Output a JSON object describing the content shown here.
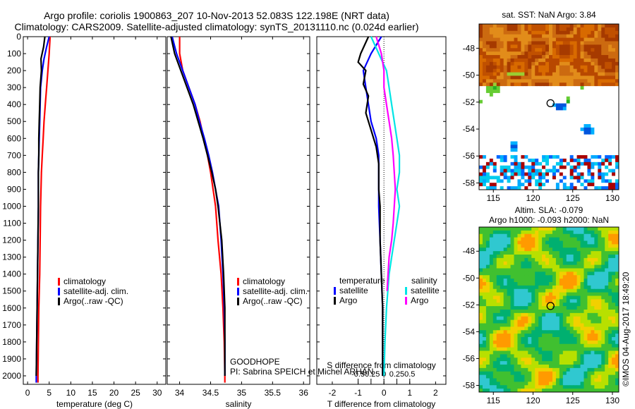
{
  "title": {
    "line1": "Argo profile: coriolis 1900863_207 10-Nov-2013 52.083S 122.198E (NRT data)",
    "line2": "Climatology: CARS2009. Satellite-adjusted climatology: synTS_20131110.nc (0.024d earlier)"
  },
  "colors": {
    "climatology": "#ff0000",
    "satellite": "#0000ff",
    "argo": "#000000",
    "salinity_satellite": "#00e5e5",
    "salinity_argo": "#ff00ff"
  },
  "chart_data": [
    {
      "type": "line",
      "id": "temperature",
      "xlabel": "temperature (deg C)",
      "xlim": [
        -1,
        32
      ],
      "xticks": [
        0,
        5,
        10,
        15,
        20,
        25,
        30
      ],
      "ylim": [
        0,
        2050
      ],
      "yticks": [
        0,
        100,
        200,
        300,
        400,
        500,
        600,
        700,
        800,
        900,
        1000,
        1100,
        1200,
        1300,
        1400,
        1500,
        1600,
        1700,
        1800,
        1900,
        2000
      ],
      "legend": [
        "climatology",
        "satellite-adj. clim.",
        "Argo(..raw -QC)"
      ],
      "series": [
        {
          "name": "climatology",
          "color": "#ff0000",
          "points": [
            [
              5.2,
              0
            ],
            [
              5.0,
              100
            ],
            [
              4.7,
              200
            ],
            [
              4.4,
              300
            ],
            [
              4.1,
              400
            ],
            [
              3.8,
              500
            ],
            [
              3.6,
              600
            ],
            [
              3.4,
              700
            ],
            [
              3.2,
              800
            ],
            [
              3.1,
              900
            ],
            [
              3.0,
              1000
            ],
            [
              2.9,
              1200
            ],
            [
              2.8,
              1400
            ],
            [
              2.6,
              1600
            ],
            [
              2.5,
              1800
            ],
            [
              2.4,
              2000
            ],
            [
              2.4,
              2040
            ]
          ]
        },
        {
          "name": "satellite-adj. clim.",
          "color": "#0000ff",
          "points": [
            [
              5.0,
              0
            ],
            [
              4.4,
              60
            ],
            [
              3.8,
              130
            ],
            [
              3.4,
              200
            ],
            [
              3.0,
              300
            ],
            [
              2.9,
              400
            ],
            [
              2.8,
              500
            ],
            [
              2.7,
              600
            ],
            [
              2.6,
              700
            ],
            [
              2.5,
              800
            ],
            [
              2.5,
              900
            ],
            [
              2.5,
              1000
            ],
            [
              2.4,
              1200
            ],
            [
              2.3,
              1400
            ],
            [
              2.2,
              1600
            ],
            [
              2.1,
              1800
            ],
            [
              2.0,
              2000
            ],
            [
              2.0,
              2040
            ]
          ]
        },
        {
          "name": "Argo(..raw -QC)",
          "color": "#000000",
          "points": [
            [
              4.0,
              0
            ],
            [
              3.7,
              60
            ],
            [
              3.1,
              130
            ],
            [
              3.2,
              200
            ],
            [
              2.9,
              300
            ],
            [
              2.8,
              400
            ],
            [
              2.7,
              500
            ],
            [
              2.6,
              600
            ],
            [
              2.6,
              700
            ],
            [
              2.5,
              800
            ],
            [
              2.5,
              900
            ],
            [
              2.5,
              1000
            ],
            [
              2.4,
              1200
            ],
            [
              2.3,
              1400
            ],
            [
              2.2,
              1600
            ],
            [
              2.1,
              1800
            ],
            [
              2.0,
              2000
            ]
          ]
        }
      ]
    },
    {
      "type": "line",
      "id": "salinity",
      "xlabel": "salinity",
      "xlim": [
        33.8,
        36.1
      ],
      "xticks": [
        34,
        34.5,
        35,
        35.5,
        36
      ],
      "ylim": [
        0,
        2050
      ],
      "legend": [
        "climatology",
        "satellite-adj. clim.",
        "Argo(..raw -QC)"
      ],
      "annotation": [
        "GOODHOPE",
        "PI: Sabrina SPEICH et Michel ARHAN"
      ],
      "series": [
        {
          "name": "climatology",
          "color": "#ff0000",
          "points": [
            [
              34.0,
              0
            ],
            [
              34.0,
              100
            ],
            [
              34.05,
              200
            ],
            [
              34.15,
              300
            ],
            [
              34.25,
              400
            ],
            [
              34.33,
              500
            ],
            [
              34.39,
              600
            ],
            [
              34.45,
              700
            ],
            [
              34.5,
              800
            ],
            [
              34.54,
              900
            ],
            [
              34.58,
              1000
            ],
            [
              34.62,
              1200
            ],
            [
              34.67,
              1400
            ],
            [
              34.7,
              1600
            ],
            [
              34.72,
              1800
            ],
            [
              34.73,
              2000
            ],
            [
              34.73,
              2040
            ]
          ]
        },
        {
          "name": "satellite-adj. clim.",
          "color": "#0000ff",
          "points": [
            [
              33.88,
              0
            ],
            [
              33.95,
              100
            ],
            [
              34.05,
              200
            ],
            [
              34.15,
              300
            ],
            [
              34.25,
              400
            ],
            [
              34.32,
              500
            ],
            [
              34.4,
              600
            ],
            [
              34.47,
              700
            ],
            [
              34.53,
              800
            ],
            [
              34.58,
              900
            ],
            [
              34.63,
              1000
            ],
            [
              34.67,
              1200
            ],
            [
              34.7,
              1400
            ],
            [
              34.72,
              1600
            ],
            [
              34.73,
              1800
            ],
            [
              34.73,
              2000
            ]
          ]
        },
        {
          "name": "Argo(..raw -QC)",
          "color": "#000000",
          "points": [
            [
              33.86,
              0
            ],
            [
              33.92,
              100
            ],
            [
              34.02,
              200
            ],
            [
              34.12,
              300
            ],
            [
              34.22,
              400
            ],
            [
              34.3,
              500
            ],
            [
              34.38,
              600
            ],
            [
              34.45,
              700
            ],
            [
              34.52,
              800
            ],
            [
              34.58,
              900
            ],
            [
              34.62,
              1000
            ],
            [
              34.68,
              1200
            ],
            [
              34.71,
              1400
            ],
            [
              34.73,
              1600
            ],
            [
              34.73,
              1800
            ],
            [
              34.73,
              2000
            ]
          ]
        }
      ]
    },
    {
      "type": "line",
      "id": "differences",
      "xlabel": "T difference from climatology",
      "xlabel_top": "S difference from climatology",
      "xlim": [
        -2.6,
        2.4
      ],
      "xticks": [
        -2,
        -1,
        0,
        1,
        2
      ],
      "xticks_salinity": [
        -0.5,
        -0.25,
        0,
        0.25,
        0.5
      ],
      "ylim": [
        0,
        2050
      ],
      "legend": {
        "temperature": [
          "temperature",
          "satellite",
          "Argo"
        ],
        "salinity": [
          "salinity",
          "satellite",
          "Argo"
        ]
      },
      "series": [
        {
          "name": "satellite",
          "group": "temperature",
          "color": "#0000ff",
          "points": [
            [
              -0.1,
              0
            ],
            [
              -0.5,
              100
            ],
            [
              -0.8,
              200
            ],
            [
              -0.7,
              300
            ],
            [
              -0.6,
              400
            ],
            [
              -0.5,
              500
            ],
            [
              -0.3,
              600
            ],
            [
              -0.2,
              700
            ],
            [
              -0.2,
              800
            ],
            [
              -0.2,
              900
            ],
            [
              -0.2,
              1000
            ],
            [
              -0.15,
              1200
            ],
            [
              -0.1,
              1400
            ],
            [
              -0.05,
              1600
            ],
            [
              -0.05,
              1800
            ],
            [
              -0.05,
              2000
            ]
          ]
        },
        {
          "name": "Argo",
          "group": "temperature",
          "color": "#000000",
          "points": [
            [
              -0.6,
              0
            ],
            [
              -0.9,
              100
            ],
            [
              -1.0,
              150
            ],
            [
              -0.7,
              200
            ],
            [
              -0.8,
              280
            ],
            [
              -0.6,
              350
            ],
            [
              -0.7,
              450
            ],
            [
              -0.5,
              550
            ],
            [
              -0.3,
              650
            ],
            [
              -0.2,
              750
            ],
            [
              -0.2,
              900
            ],
            [
              -0.15,
              1000
            ],
            [
              -0.15,
              1200
            ],
            [
              -0.1,
              1400
            ],
            [
              -0.05,
              1600
            ],
            [
              -0.05,
              1800
            ],
            [
              -0.05,
              2000
            ]
          ]
        },
        {
          "name": "satellite",
          "group": "salinity",
          "color": "#00e5e5",
          "points": [
            [
              -0.25,
              0
            ],
            [
              -0.1,
              100
            ],
            [
              0.05,
              200
            ],
            [
              0.1,
              300
            ],
            [
              0.15,
              400
            ],
            [
              0.2,
              500
            ],
            [
              0.25,
              600
            ],
            [
              0.3,
              700
            ],
            [
              0.3,
              800
            ],
            [
              0.25,
              900
            ],
            [
              0.3,
              1000
            ],
            [
              0.25,
              1100
            ],
            [
              0.2,
              1200
            ],
            [
              0.15,
              1300
            ],
            [
              0.1,
              1400
            ],
            [
              0.05,
              1600
            ],
            [
              0.02,
              1800
            ],
            [
              0.0,
              2000
            ]
          ]
        },
        {
          "name": "Argo",
          "group": "salinity",
          "color": "#ff00ff",
          "points": [
            [
              -0.15,
              0
            ],
            [
              -0.05,
              100
            ],
            [
              0.0,
              200
            ],
            [
              0.0,
              300
            ],
            [
              0.05,
              400
            ],
            [
              0.1,
              500
            ],
            [
              0.15,
              600
            ],
            [
              0.18,
              700
            ],
            [
              0.2,
              800
            ],
            [
              0.22,
              900
            ],
            [
              0.2,
              1000
            ],
            [
              0.18,
              1100
            ],
            [
              0.15,
              1200
            ],
            [
              0.1,
              1300
            ],
            [
              0.08,
              1400
            ],
            [
              0.06,
              1500
            ]
          ]
        }
      ]
    },
    {
      "type": "heatmap",
      "id": "sst_map",
      "title": "sat. SST: NaN Argo: 3.84",
      "xticks": [
        115,
        120,
        125,
        130
      ],
      "yticks": [
        -48,
        -50,
        -52,
        -54,
        -56,
        -58
      ],
      "xlim": [
        113.2,
        130.8
      ],
      "ylim": [
        -58.5,
        -46.2
      ],
      "marker": [
        122.2,
        -52.08
      ]
    },
    {
      "type": "heatmap",
      "id": "sla_map",
      "title": "Altim. SLA: -0.079",
      "subtitle": "Argo h1000: -0.093 h2000: NaN",
      "xticks": [
        115,
        120,
        125,
        130
      ],
      "yticks": [
        -48,
        -50,
        -52,
        -54,
        -56,
        -58
      ],
      "xlim": [
        113.2,
        130.8
      ],
      "ylim": [
        -58.5,
        -46.2
      ],
      "marker": [
        122.2,
        -52.08
      ]
    }
  ],
  "stamp": "©IMOS 04-Aug-2017 18:49:20"
}
